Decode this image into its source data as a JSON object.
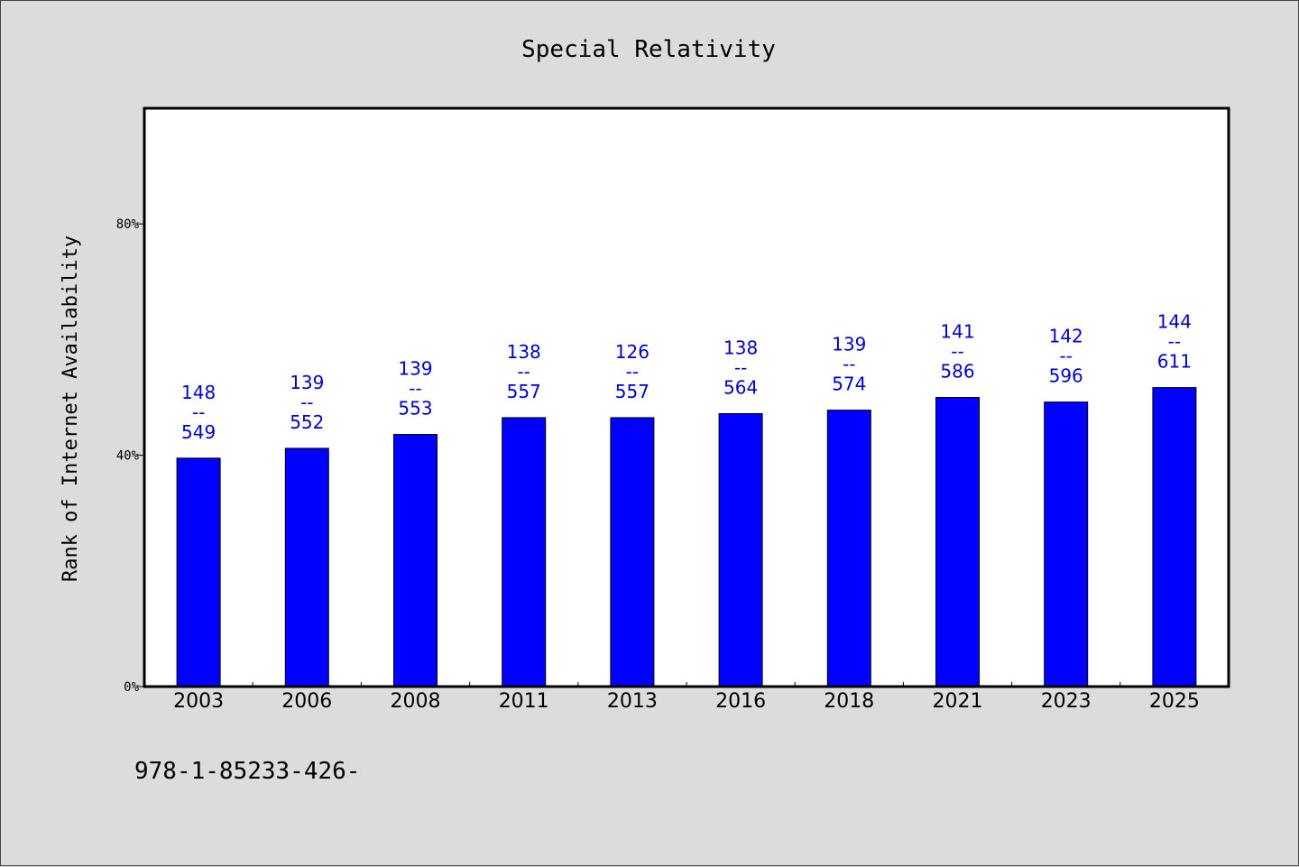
{
  "chart_data": {
    "type": "bar",
    "title": "Special Relativity",
    "xlabel": "",
    "ylabel": "Rank of Internet Availability",
    "categories": [
      "2003",
      "2006",
      "2008",
      "2011",
      "2013",
      "2016",
      "2018",
      "2021",
      "2023",
      "2025"
    ],
    "values": [
      39.5,
      41.2,
      43.6,
      46.5,
      46.5,
      47.2,
      47.8,
      50.0,
      49.2,
      51.7
    ],
    "data_labels": [
      [
        "148",
        "--",
        "549"
      ],
      [
        "139",
        "--",
        "552"
      ],
      [
        "139",
        "--",
        "553"
      ],
      [
        "138",
        "--",
        "557"
      ],
      [
        "126",
        "--",
        "557"
      ],
      [
        "138",
        "--",
        "564"
      ],
      [
        "139",
        "--",
        "574"
      ],
      [
        "141",
        "--",
        "586"
      ],
      [
        "142",
        "--",
        "596"
      ],
      [
        "144",
        "--",
        "611"
      ]
    ],
    "ylim": [
      0,
      100
    ],
    "yticks": [
      0,
      40,
      80
    ],
    "ytick_labels": [
      "0%",
      "40%",
      "80%"
    ],
    "grid": false,
    "legend": "none",
    "colors": {
      "bar": "#0000ff",
      "data_label": "#0000cc",
      "background": "#dcdcdc",
      "plot_background": "#ffffff"
    }
  },
  "footer": {
    "text": "978-1-85233-426-"
  }
}
